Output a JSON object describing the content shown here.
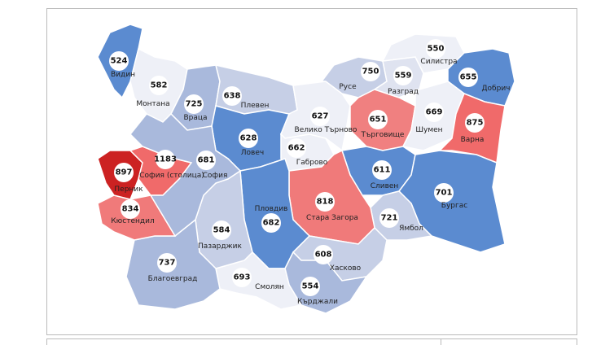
{
  "map": {
    "regions": [
      {
        "name": "Видин",
        "value": 524,
        "color": "#5b8bd0"
      },
      {
        "name": "Монтана",
        "value": 582,
        "color": "#eef0f7"
      },
      {
        "name": "Враца",
        "value": 725,
        "color": "#a9b9dc"
      },
      {
        "name": "Плевен",
        "value": 638,
        "color": "#c6cfe6"
      },
      {
        "name": "Ловеч",
        "value": 628,
        "color": "#5b8bd0"
      },
      {
        "name": "Велико Търново",
        "value": 627,
        "color": "#eef0f7"
      },
      {
        "name": "Габрово",
        "value": 662,
        "color": "#eef0f7"
      },
      {
        "name": "Русе",
        "value": 750,
        "color": "#c6cfe6"
      },
      {
        "name": "Разград",
        "value": 559,
        "color": "#dfe3f0"
      },
      {
        "name": "Силистра",
        "value": 550,
        "color": "#eef0f7"
      },
      {
        "name": "Добрич",
        "value": 655,
        "color": "#5b8bd0"
      },
      {
        "name": "Търговище",
        "value": 651,
        "color": "#f08080"
      },
      {
        "name": "Шумен",
        "value": 669,
        "color": "#eef0f7"
      },
      {
        "name": "Варна",
        "value": 875,
        "color": "#f06a6a"
      },
      {
        "name": "Сливен",
        "value": 611,
        "color": "#5b8bd0"
      },
      {
        "name": "Бургас",
        "value": 701,
        "color": "#5b8bd0"
      },
      {
        "name": "Ямбол",
        "value": 721,
        "color": "#c6cfe6"
      },
      {
        "name": "Стара Загора",
        "value": 818,
        "color": "#f07a7a"
      },
      {
        "name": "Пловдив",
        "value": 682,
        "color": "#5b8bd0"
      },
      {
        "name": "Хасково",
        "value": 608,
        "color": "#c6cfe6"
      },
      {
        "name": "Кърджали",
        "value": 554,
        "color": "#a9b9dc"
      },
      {
        "name": "Смолян",
        "value": 693,
        "color": "#eef0f7"
      },
      {
        "name": "Пазарджик",
        "value": 584,
        "color": "#c6cfe6"
      },
      {
        "name": "Благоевград",
        "value": 737,
        "color": "#a9b9dc"
      },
      {
        "name": "Кюстендил",
        "value": 834,
        "color": "#f07a7a"
      },
      {
        "name": "Перник",
        "value": 897,
        "color": "#cc2222"
      },
      {
        "name": "София (столица)",
        "value": 1183,
        "color": "#f06a6a"
      },
      {
        "name": "София",
        "value": 681,
        "color": "#a9b9dc"
      }
    ]
  }
}
